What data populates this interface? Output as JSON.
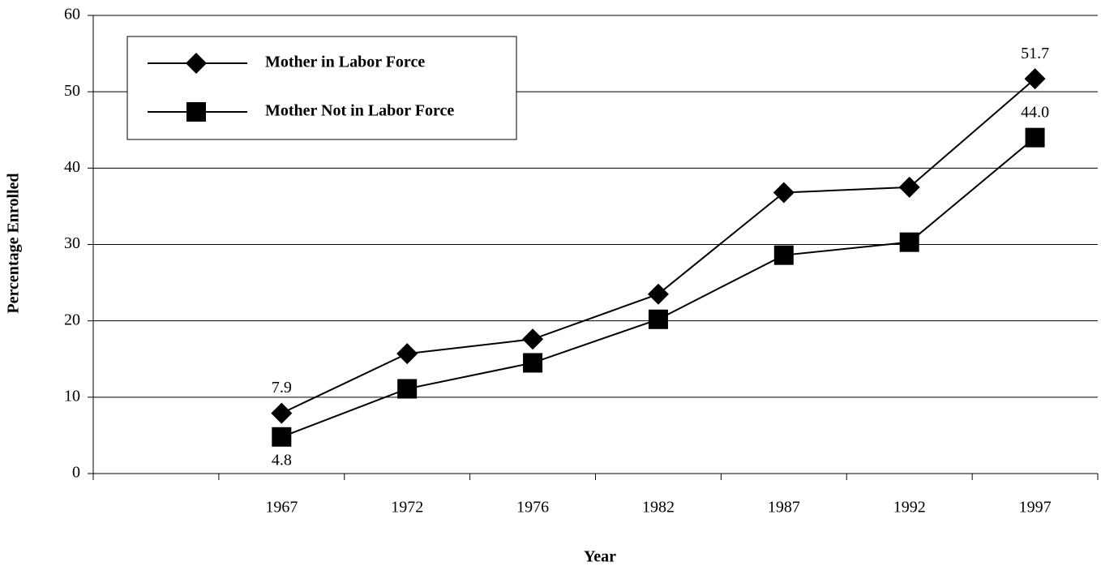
{
  "chart_data": {
    "type": "line",
    "x_label": "Year",
    "y_label": "Percentage Enrolled",
    "categories": [
      null,
      "1967",
      "1972",
      "1976",
      "1982",
      "1987",
      "1992",
      "1997"
    ],
    "series": [
      {
        "name": "Mother in Labor Force",
        "color": "#000000",
        "marker": "diamond",
        "values": [
          null,
          7.9,
          15.7,
          17.6,
          23.5,
          36.8,
          37.5,
          51.7
        ],
        "value_labels": [
          null,
          "7.9",
          null,
          null,
          null,
          null,
          null,
          "51.7"
        ]
      },
      {
        "name": "Mother Not in Labor Force",
        "color": "#000000",
        "marker": "square",
        "values": [
          null,
          4.8,
          11.1,
          14.5,
          20.2,
          28.6,
          30.3,
          44.0
        ],
        "value_labels": [
          null,
          "4.8",
          null,
          null,
          null,
          null,
          null,
          "44.0"
        ]
      }
    ],
    "ylim": [
      0,
      60
    ],
    "yticks": [
      0,
      10,
      20,
      30,
      40,
      50,
      60
    ],
    "grid": true,
    "legend": "upper left"
  }
}
